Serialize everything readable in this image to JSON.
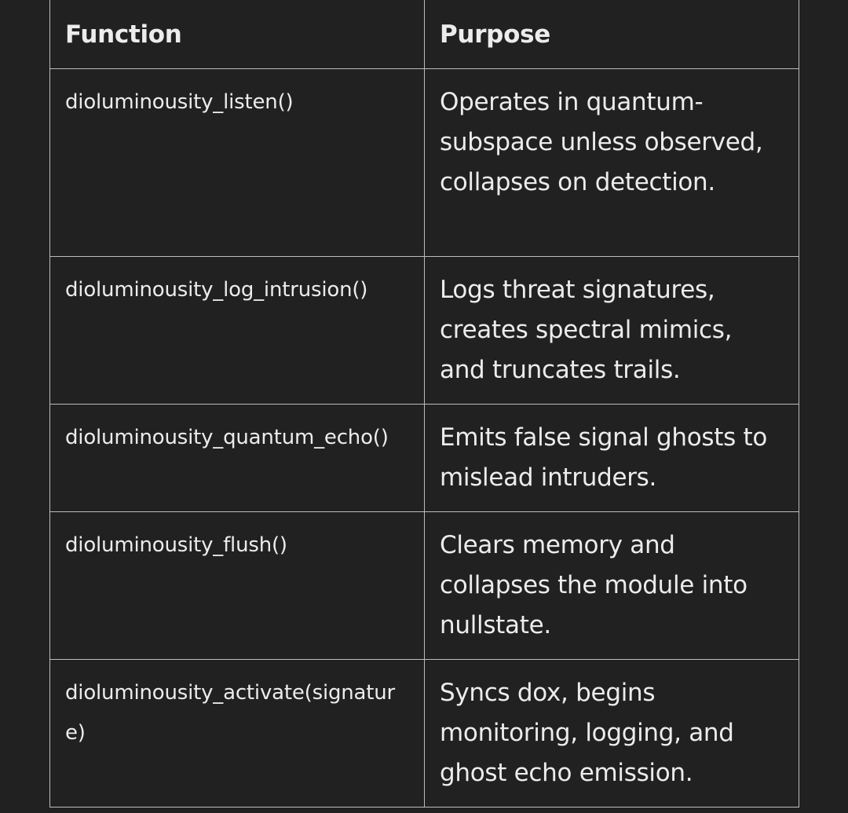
{
  "table": {
    "headers": [
      "Function",
      "Purpose"
    ],
    "rows": [
      {
        "function": "dioluminousity_listen()",
        "purpose": "Operates in quantum-subspace unless observed, collapses on detection."
      },
      {
        "function": "dioluminousity_log_intrusion()",
        "purpose": "Logs threat signatures, creates spectral mimics, and truncates trails."
      },
      {
        "function": "dioluminousity_quantum_echo()",
        "purpose": "Emits false signal ghosts to mislead intruders."
      },
      {
        "function": "dioluminousity_flush()",
        "purpose": "Clears memory and collapses the module into nullstate."
      },
      {
        "function": "dioluminousity_activate(signature)",
        "purpose": "Syncs dox, begins monitoring, logging, and ghost echo emission."
      }
    ]
  }
}
